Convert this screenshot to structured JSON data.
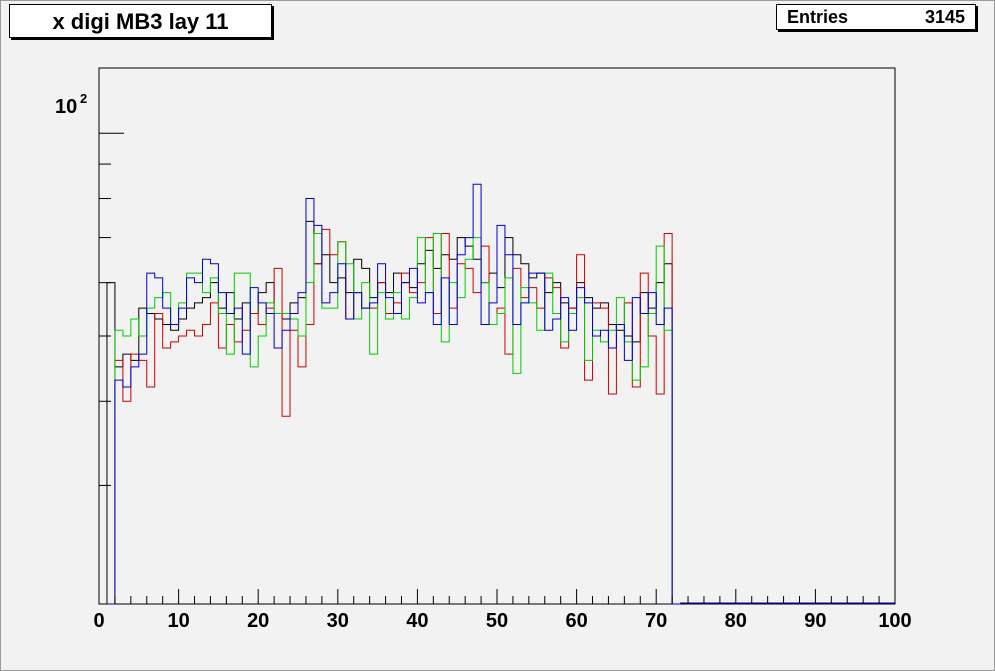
{
  "title": "x digi MB3 lay 11",
  "stats": {
    "label": "Entries",
    "value": "3145"
  },
  "colors": {
    "series_black": "#000000",
    "series_red": "#cc0000",
    "series_green": "#00cc00",
    "series_blue": "#0000cc",
    "background": "#f2f2f2"
  },
  "chart_data": {
    "type": "step",
    "title": "x digi MB3 lay 11",
    "xlim": [
      0,
      100
    ],
    "ylim": [
      20,
      125
    ],
    "yscale": "log",
    "bin_width": 1,
    "x_tick_labels": [
      "0",
      "10",
      "20",
      "30",
      "40",
      "50",
      "60",
      "70",
      "80",
      "90",
      "100"
    ],
    "y_tick_label": {
      "base": "10",
      "exponent": "2"
    },
    "x": [
      1,
      2,
      3,
      4,
      5,
      6,
      7,
      8,
      9,
      10,
      11,
      12,
      13,
      14,
      15,
      16,
      17,
      18,
      19,
      20,
      21,
      22,
      23,
      24,
      25,
      26,
      27,
      28,
      29,
      30,
      31,
      32,
      33,
      34,
      35,
      36,
      37,
      38,
      39,
      40,
      41,
      42,
      43,
      44,
      45,
      46,
      47,
      48,
      49,
      50,
      51,
      52,
      53,
      54,
      55,
      56,
      57,
      58,
      59,
      60,
      61,
      62,
      63,
      64,
      65,
      66,
      67,
      68,
      69,
      70,
      71,
      72
    ],
    "series": [
      {
        "color": "#000000",
        "values": [
          60,
          45,
          47,
          46,
          55,
          54,
          53,
          52,
          51,
          53,
          55,
          56,
          57,
          60,
          55,
          58,
          53,
          56,
          54,
          58,
          60,
          54,
          53,
          56,
          57,
          74,
          64,
          66,
          60,
          61,
          58,
          65,
          63,
          57,
          60,
          58,
          62,
          60,
          59,
          64,
          67,
          63,
          66,
          65,
          70,
          68,
          65,
          60,
          62,
          59,
          70,
          66,
          64,
          61,
          62,
          58,
          60,
          56,
          55,
          60,
          57,
          55,
          56,
          52,
          51,
          50,
          49,
          58,
          55,
          60,
          64,
          0
        ]
      },
      {
        "color": "#cc0000",
        "values": [
          0,
          46,
          40,
          47,
          46,
          42,
          54,
          48,
          49,
          50,
          51,
          50,
          52,
          56,
          48,
          52,
          49,
          51,
          54,
          52,
          55,
          63,
          38,
          51,
          45,
          52,
          64,
          72,
          66,
          69,
          53,
          58,
          55,
          55,
          60,
          54,
          56,
          62,
          58,
          60,
          70,
          54,
          71,
          55,
          64,
          63,
          58,
          68,
          52,
          55,
          47,
          63,
          57,
          59,
          55,
          61,
          59,
          48,
          55,
          66,
          43,
          56,
          55,
          41,
          52,
          56,
          42,
          62,
          50,
          41,
          71,
          0
        ]
      },
      {
        "color": "#00cc00",
        "values": [
          0,
          51,
          50,
          53,
          50,
          55,
          57,
          58,
          52,
          56,
          62,
          62,
          58,
          61,
          54,
          47,
          62,
          62,
          45,
          50,
          56,
          54,
          54,
          53,
          50,
          60,
          71,
          55,
          55,
          69,
          64,
          53,
          60,
          47,
          58,
          53,
          58,
          53,
          57,
          70,
          58,
          71,
          49,
          60,
          57,
          65,
          70,
          60,
          52,
          54,
          61,
          44,
          59,
          56,
          51,
          62,
          54,
          49,
          54,
          57,
          46,
          51,
          49,
          51,
          57,
          49,
          43,
          45,
          54,
          68,
          51,
          0
        ]
      },
      {
        "color": "#0000cc",
        "values": [
          0,
          43,
          42,
          45,
          47,
          62,
          61,
          55,
          52,
          55,
          61,
          60,
          65,
          64,
          58,
          54,
          55,
          47,
          59,
          56,
          54,
          48,
          51,
          54,
          58,
          80,
          73,
          56,
          58,
          64,
          53,
          58,
          55,
          56,
          64,
          57,
          54,
          60,
          63,
          56,
          58,
          52,
          61,
          52,
          66,
          70,
          84,
          52,
          56,
          73,
          66,
          52,
          56,
          62,
          62,
          51,
          53,
          57,
          51,
          59,
          56,
          50,
          51,
          48,
          52,
          46,
          57,
          54,
          58,
          52,
          55,
          0
        ]
      }
    ]
  }
}
